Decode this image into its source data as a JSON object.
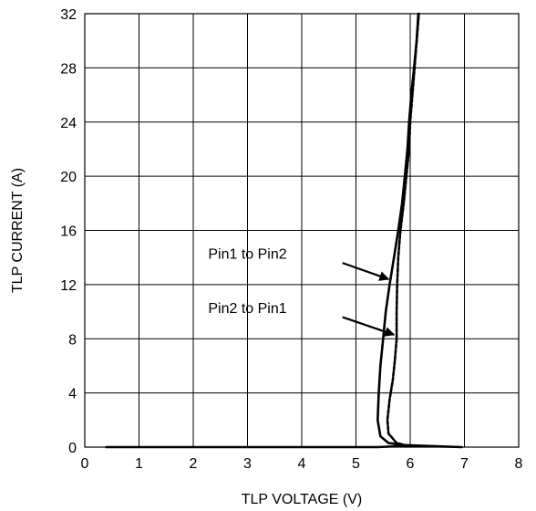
{
  "chart_data": {
    "type": "line",
    "title": "",
    "xlabel": "TLP VOLTAGE (V)",
    "ylabel": "TLP CURRENT (A)",
    "xlim": [
      0,
      8
    ],
    "ylim": [
      0,
      32
    ],
    "x_ticks": [
      0,
      1,
      2,
      3,
      4,
      5,
      6,
      7,
      8
    ],
    "y_ticks": [
      0,
      4,
      8,
      12,
      16,
      20,
      24,
      28,
      32
    ],
    "grid": true,
    "series": [
      {
        "name": "Pin1 to Pin2",
        "line_style": "solid",
        "points": [
          [
            0.4,
            0.0
          ],
          [
            2.0,
            0.0
          ],
          [
            4.0,
            0.0
          ],
          [
            5.4,
            0.0
          ],
          [
            5.9,
            0.1
          ],
          [
            6.6,
            0.05
          ],
          [
            6.95,
            0.0
          ],
          [
            5.9,
            0.15
          ],
          [
            5.6,
            0.3
          ],
          [
            5.45,
            0.8
          ],
          [
            5.4,
            2.0
          ],
          [
            5.42,
            4.0
          ],
          [
            5.45,
            6.0
          ],
          [
            5.5,
            8.0
          ],
          [
            5.55,
            10.0
          ],
          [
            5.62,
            12.0
          ],
          [
            5.7,
            14.0
          ],
          [
            5.78,
            16.0
          ],
          [
            5.85,
            18.0
          ],
          [
            5.9,
            20.0
          ],
          [
            5.95,
            22.0
          ],
          [
            5.98,
            24.0
          ],
          [
            6.02,
            26.0
          ],
          [
            6.07,
            28.0
          ],
          [
            6.12,
            30.0
          ],
          [
            6.15,
            32.0
          ]
        ]
      },
      {
        "name": "Pin2 to Pin1",
        "line_style": "dashed",
        "points": [
          [
            5.95,
            0.1
          ],
          [
            5.75,
            0.3
          ],
          [
            5.6,
            1.0
          ],
          [
            5.58,
            2.0
          ],
          [
            5.62,
            3.5
          ],
          [
            5.68,
            5.0
          ],
          [
            5.72,
            6.5
          ],
          [
            5.75,
            8.0
          ],
          [
            5.75,
            10.0
          ],
          [
            5.76,
            12.0
          ],
          [
            5.78,
            14.0
          ],
          [
            5.82,
            16.0
          ],
          [
            5.88,
            18.0
          ],
          [
            5.93,
            20.0
          ],
          [
            5.98,
            22.0
          ],
          [
            6.0,
            24.0
          ],
          [
            6.04,
            26.0
          ],
          [
            6.08,
            28.0
          ],
          [
            6.12,
            30.0
          ],
          [
            6.16,
            32.0
          ]
        ]
      }
    ],
    "annotations": [
      {
        "text": "Pin1 to Pin2",
        "label_at": [
          3.0,
          13.9
        ],
        "arrow_from": [
          4.75,
          13.6
        ],
        "arrow_to": [
          5.6,
          12.4
        ]
      },
      {
        "text": "Pin2 to Pin1",
        "label_at": [
          3.0,
          9.9
        ],
        "arrow_from": [
          4.75,
          9.6
        ],
        "arrow_to": [
          5.7,
          8.3
        ]
      }
    ]
  }
}
